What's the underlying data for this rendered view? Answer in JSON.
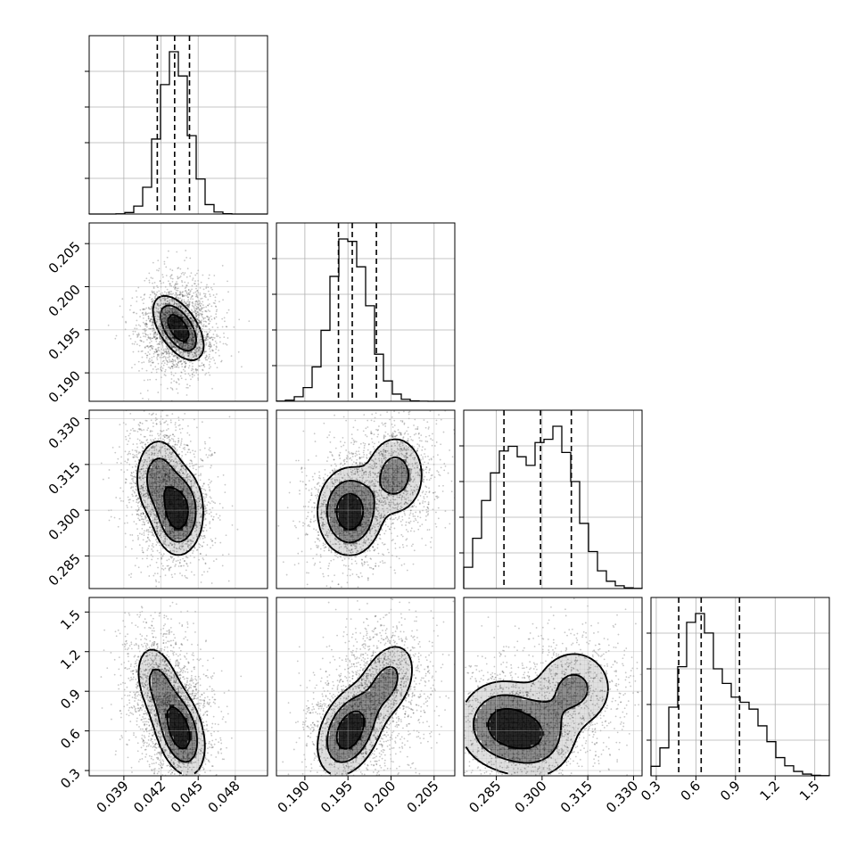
{
  "chart_data": {
    "type": "corner",
    "parameters": [
      {
        "name": "",
        "range": [
          0.0362,
          0.0506
        ],
        "ticks": [
          0.039,
          0.042,
          0.045,
          0.048
        ],
        "tick_labels": [
          "0.039",
          "0.042",
          "0.045",
          "0.048"
        ],
        "quantiles": [
          0.0417,
          0.0431,
          0.0443
        ],
        "peak": 0.0431,
        "sigma": 0.0012
      },
      {
        "name": "",
        "range": [
          0.1867,
          0.2074
        ],
        "ticks": [
          0.19,
          0.195,
          0.2,
          0.205
        ],
        "tick_labels": [
          "0.190",
          "0.195",
          "0.200",
          "0.205"
        ],
        "quantiles": [
          0.1939,
          0.1955,
          0.1983
        ],
        "peak": 0.1952,
        "sigma": 0.0022
      },
      {
        "name": "",
        "range": [
          0.2743,
          0.3328
        ],
        "ticks": [
          0.285,
          0.3,
          0.315,
          0.33
        ],
        "tick_labels": [
          "0.285",
          "0.300",
          "0.315",
          "0.330"
        ],
        "quantiles": [
          0.2875,
          0.2995,
          0.3096
        ],
        "peak": 0.3035,
        "sigma": 0.0085
      },
      {
        "name": "",
        "range": [
          0.26,
          1.61
        ],
        "ticks": [
          0.3,
          0.6,
          0.9,
          1.2,
          1.5
        ],
        "tick_labels": [
          "0.3",
          "0.6",
          "0.9",
          "1.2",
          "1.5"
        ],
        "quantiles": [
          0.47,
          0.64,
          0.93
        ],
        "peak": 0.62,
        "sigma": 0.2
      }
    ],
    "histograms": [
      {
        "param": 0,
        "bins": 20,
        "peak_counts_relative": 1.0
      },
      {
        "param": 1,
        "bins": 20,
        "peak_counts_relative": 1.0
      },
      {
        "param": 2,
        "bins": 20,
        "peak_counts_relative": 1.0
      },
      {
        "param": 3,
        "bins": 20,
        "peak_counts_relative": 1.0
      }
    ],
    "pair_modes": {
      "1_0": [
        {
          "x": 0.0434,
          "y": 0.1952,
          "w": 1.0
        }
      ],
      "2_0": [
        {
          "x": 0.0434,
          "y": 0.2995,
          "w": 1.0
        },
        {
          "x": 0.0418,
          "y": 0.3105,
          "w": 0.55
        }
      ],
      "2_1": [
        {
          "x": 0.1952,
          "y": 0.2995,
          "w": 1.0
        },
        {
          "x": 0.2005,
          "y": 0.3115,
          "w": 0.5
        }
      ],
      "3_0": [
        {
          "x": 0.0435,
          "y": 0.6,
          "w": 1.0
        },
        {
          "x": 0.0418,
          "y": 0.95,
          "w": 0.45
        }
      ],
      "3_1": [
        {
          "x": 0.1952,
          "y": 0.6,
          "w": 1.0
        },
        {
          "x": 0.1995,
          "y": 0.97,
          "w": 0.45
        }
      ],
      "3_2": [
        {
          "x": 0.2865,
          "y": 0.65,
          "w": 1.0
        },
        {
          "x": 0.2975,
          "y": 0.56,
          "w": 0.8
        },
        {
          "x": 0.3105,
          "y": 0.92,
          "w": 0.55
        }
      ]
    },
    "grid": true,
    "contour_levels": 3,
    "quantile_line_style": "dashed",
    "colors": {
      "hist": "#000000",
      "points": "#000000",
      "density": "#000000"
    }
  }
}
